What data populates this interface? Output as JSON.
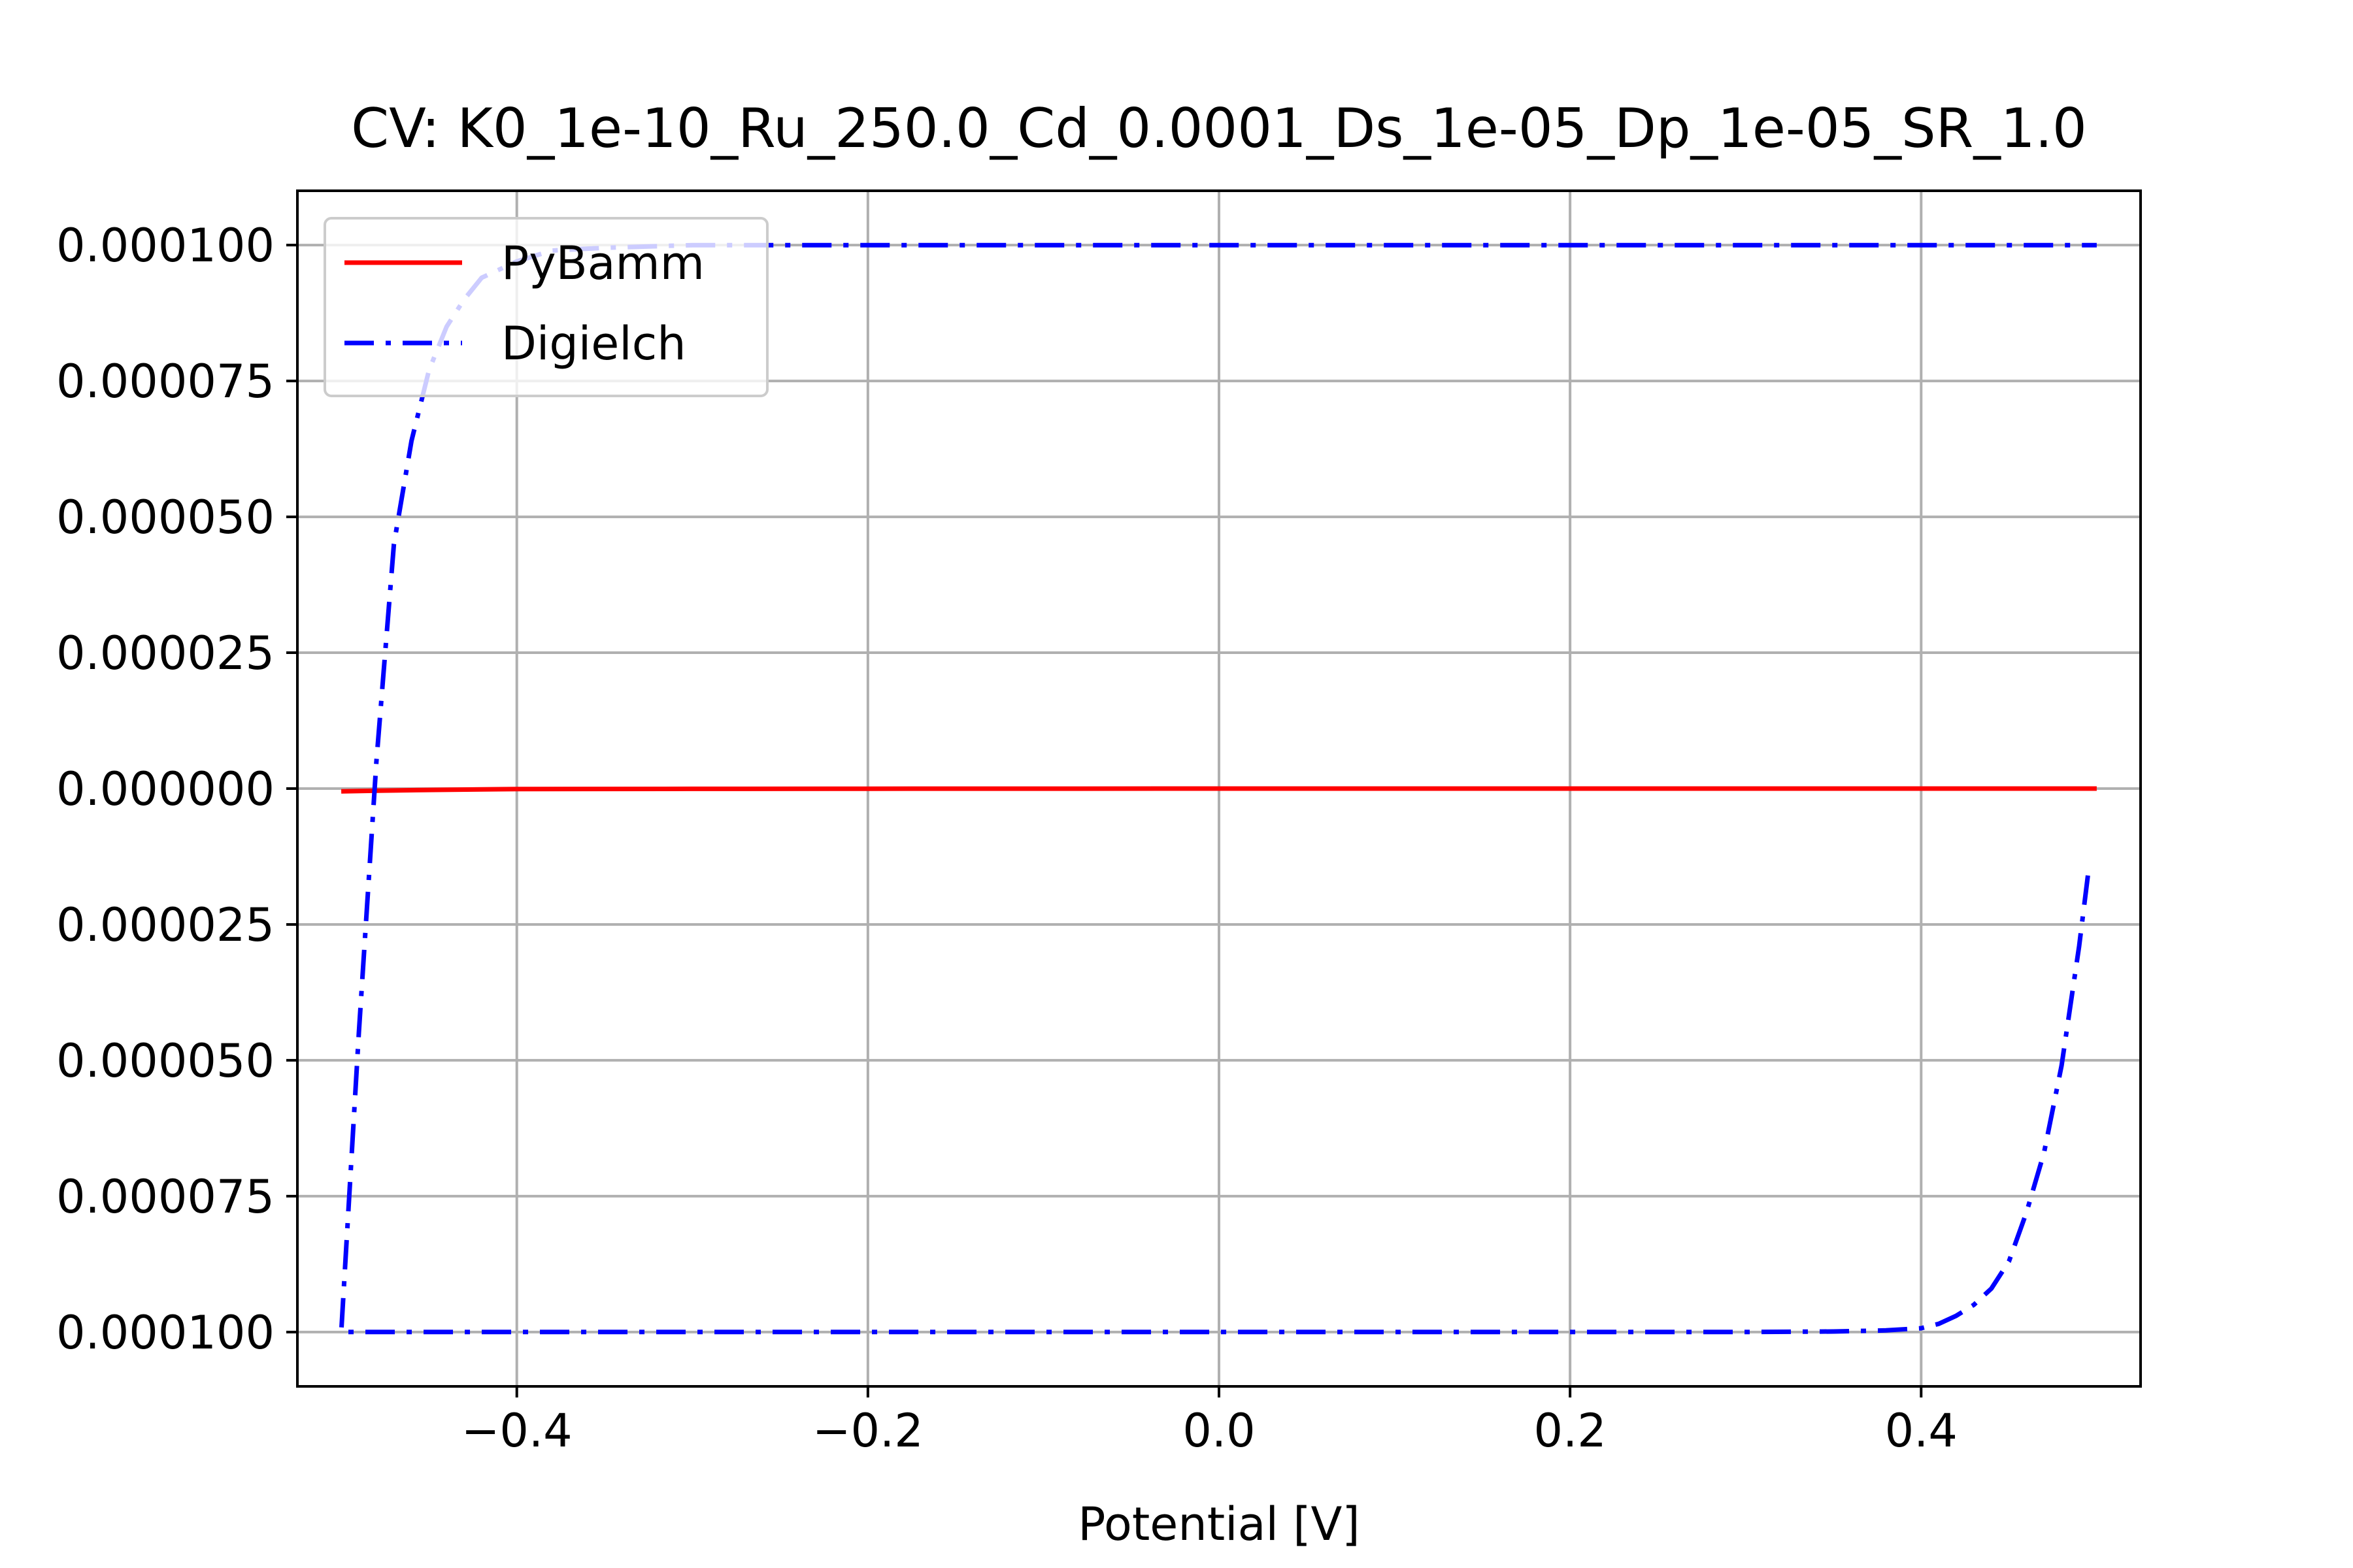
{
  "chart_data": {
    "type": "line",
    "title": "CV: K0_1e-10_Ru_250.0_Cd_0.0001_Ds_1e-05_Dp_1e-05_SR_1.0",
    "xlabel": "Potential [V]",
    "ylabel": "",
    "xlim": [
      -0.525,
      0.525
    ],
    "ylim": [
      -0.00011,
      0.00011
    ],
    "grid": true,
    "legend_position": "top-left",
    "x_ticks": [
      {
        "value": -0.4,
        "label": "−0.4"
      },
      {
        "value": -0.2,
        "label": "−0.2"
      },
      {
        "value": 0.0,
        "label": "0.0"
      },
      {
        "value": 0.2,
        "label": "0.2"
      },
      {
        "value": 0.4,
        "label": "0.4"
      }
    ],
    "y_ticks": [
      {
        "value": 0.0001,
        "label": "0.000100"
      },
      {
        "value": 7.5e-05,
        "label": "0.000075"
      },
      {
        "value": 5e-05,
        "label": "0.000050"
      },
      {
        "value": 2.5e-05,
        "label": "0.000025"
      },
      {
        "value": 0.0,
        "label": "0.000000"
      },
      {
        "value": -2.5e-05,
        "label": "0.000025"
      },
      {
        "value": -5e-05,
        "label": "0.000050"
      },
      {
        "value": -7.5e-05,
        "label": "0.000075"
      },
      {
        "value": -0.0001,
        "label": "0.000100"
      }
    ],
    "series": [
      {
        "name": "PyBamm",
        "color": "#ff0000",
        "line_style": "solid",
        "x": [
          -0.5,
          -0.49,
          -0.48,
          -0.47,
          -0.45,
          -0.42,
          -0.4,
          -0.3,
          -0.2,
          0.0,
          0.2,
          0.4,
          0.5
        ],
        "y": [
          -5e-07,
          -4.5e-07,
          -4e-07,
          -3.5e-07,
          -2.5e-07,
          -1.5e-07,
          -1e-07,
          -5e-08,
          -2e-08,
          0.0,
          0.0,
          0.0,
          0.0
        ]
      },
      {
        "name": "Digielch",
        "color": "#0000ff",
        "line_style": "dashdot",
        "x": [
          0.495,
          0.49,
          0.48,
          0.47,
          0.46,
          0.45,
          0.44,
          0.43,
          0.42,
          0.41,
          0.4,
          0.38,
          0.35,
          0.3,
          0.2,
          0.0,
          -0.2,
          -0.4,
          -0.497,
          -0.5,
          -0.49,
          -0.48,
          -0.47,
          -0.46,
          -0.45,
          -0.44,
          -0.43,
          -0.42,
          -0.4,
          -0.38,
          -0.35,
          -0.3,
          -0.2,
          0.0,
          0.2,
          0.4,
          0.5
        ],
        "y": [
          -1.6e-05,
          -2.9e-05,
          -5.1e-05,
          -6.7e-05,
          -7.8e-05,
          -8.7e-05,
          -9.2e-05,
          -9.5e-05,
          -9.7e-05,
          -9.85e-05,
          -9.93e-05,
          -9.97e-05,
          -9.99e-05,
          -0.0001,
          -0.0001,
          -0.0001,
          -0.0001,
          -0.0001,
          -0.0001,
          -0.0001,
          -4.5e-05,
          5e-06,
          4.5e-05,
          6.4e-05,
          7.7e-05,
          8.5e-05,
          9e-05,
          9.4e-05,
          9.7e-05,
          9.9e-05,
          9.95e-05,
          0.0001,
          0.0001,
          0.0001,
          0.0001,
          0.0001,
          0.0001
        ]
      }
    ]
  }
}
